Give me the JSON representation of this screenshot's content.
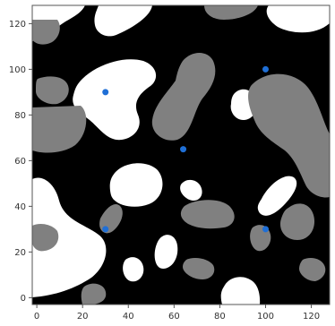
{
  "chart_data": {
    "type": "scatter",
    "title": "",
    "xlabel": "",
    "ylabel": "",
    "xlim": [
      -2,
      128
    ],
    "ylim": [
      -3,
      128
    ],
    "grid": false,
    "legend": "none",
    "x_ticks": [
      0,
      20,
      40,
      60,
      80,
      100,
      120
    ],
    "y_ticks": [
      0,
      20,
      40,
      60,
      80,
      100,
      120
    ],
    "x_tick_labels": [
      "0",
      "20",
      "40",
      "60",
      "80",
      "100",
      "120"
    ],
    "y_tick_labels": [
      "0",
      "20",
      "40",
      "60",
      "80",
      "100",
      "120"
    ],
    "background_field": {
      "colors": {
        "background": "#000000",
        "white_regions": "#ffffff",
        "gray_regions": "#808080"
      }
    },
    "series": [
      {
        "color": "#1f6fd6",
        "points": [
          {
            "x": 30,
            "y": 90
          },
          {
            "x": 100,
            "y": 100
          },
          {
            "x": 64,
            "y": 65
          },
          {
            "x": 30,
            "y": 30
          },
          {
            "x": 100,
            "y": 30
          }
        ]
      }
    ]
  }
}
